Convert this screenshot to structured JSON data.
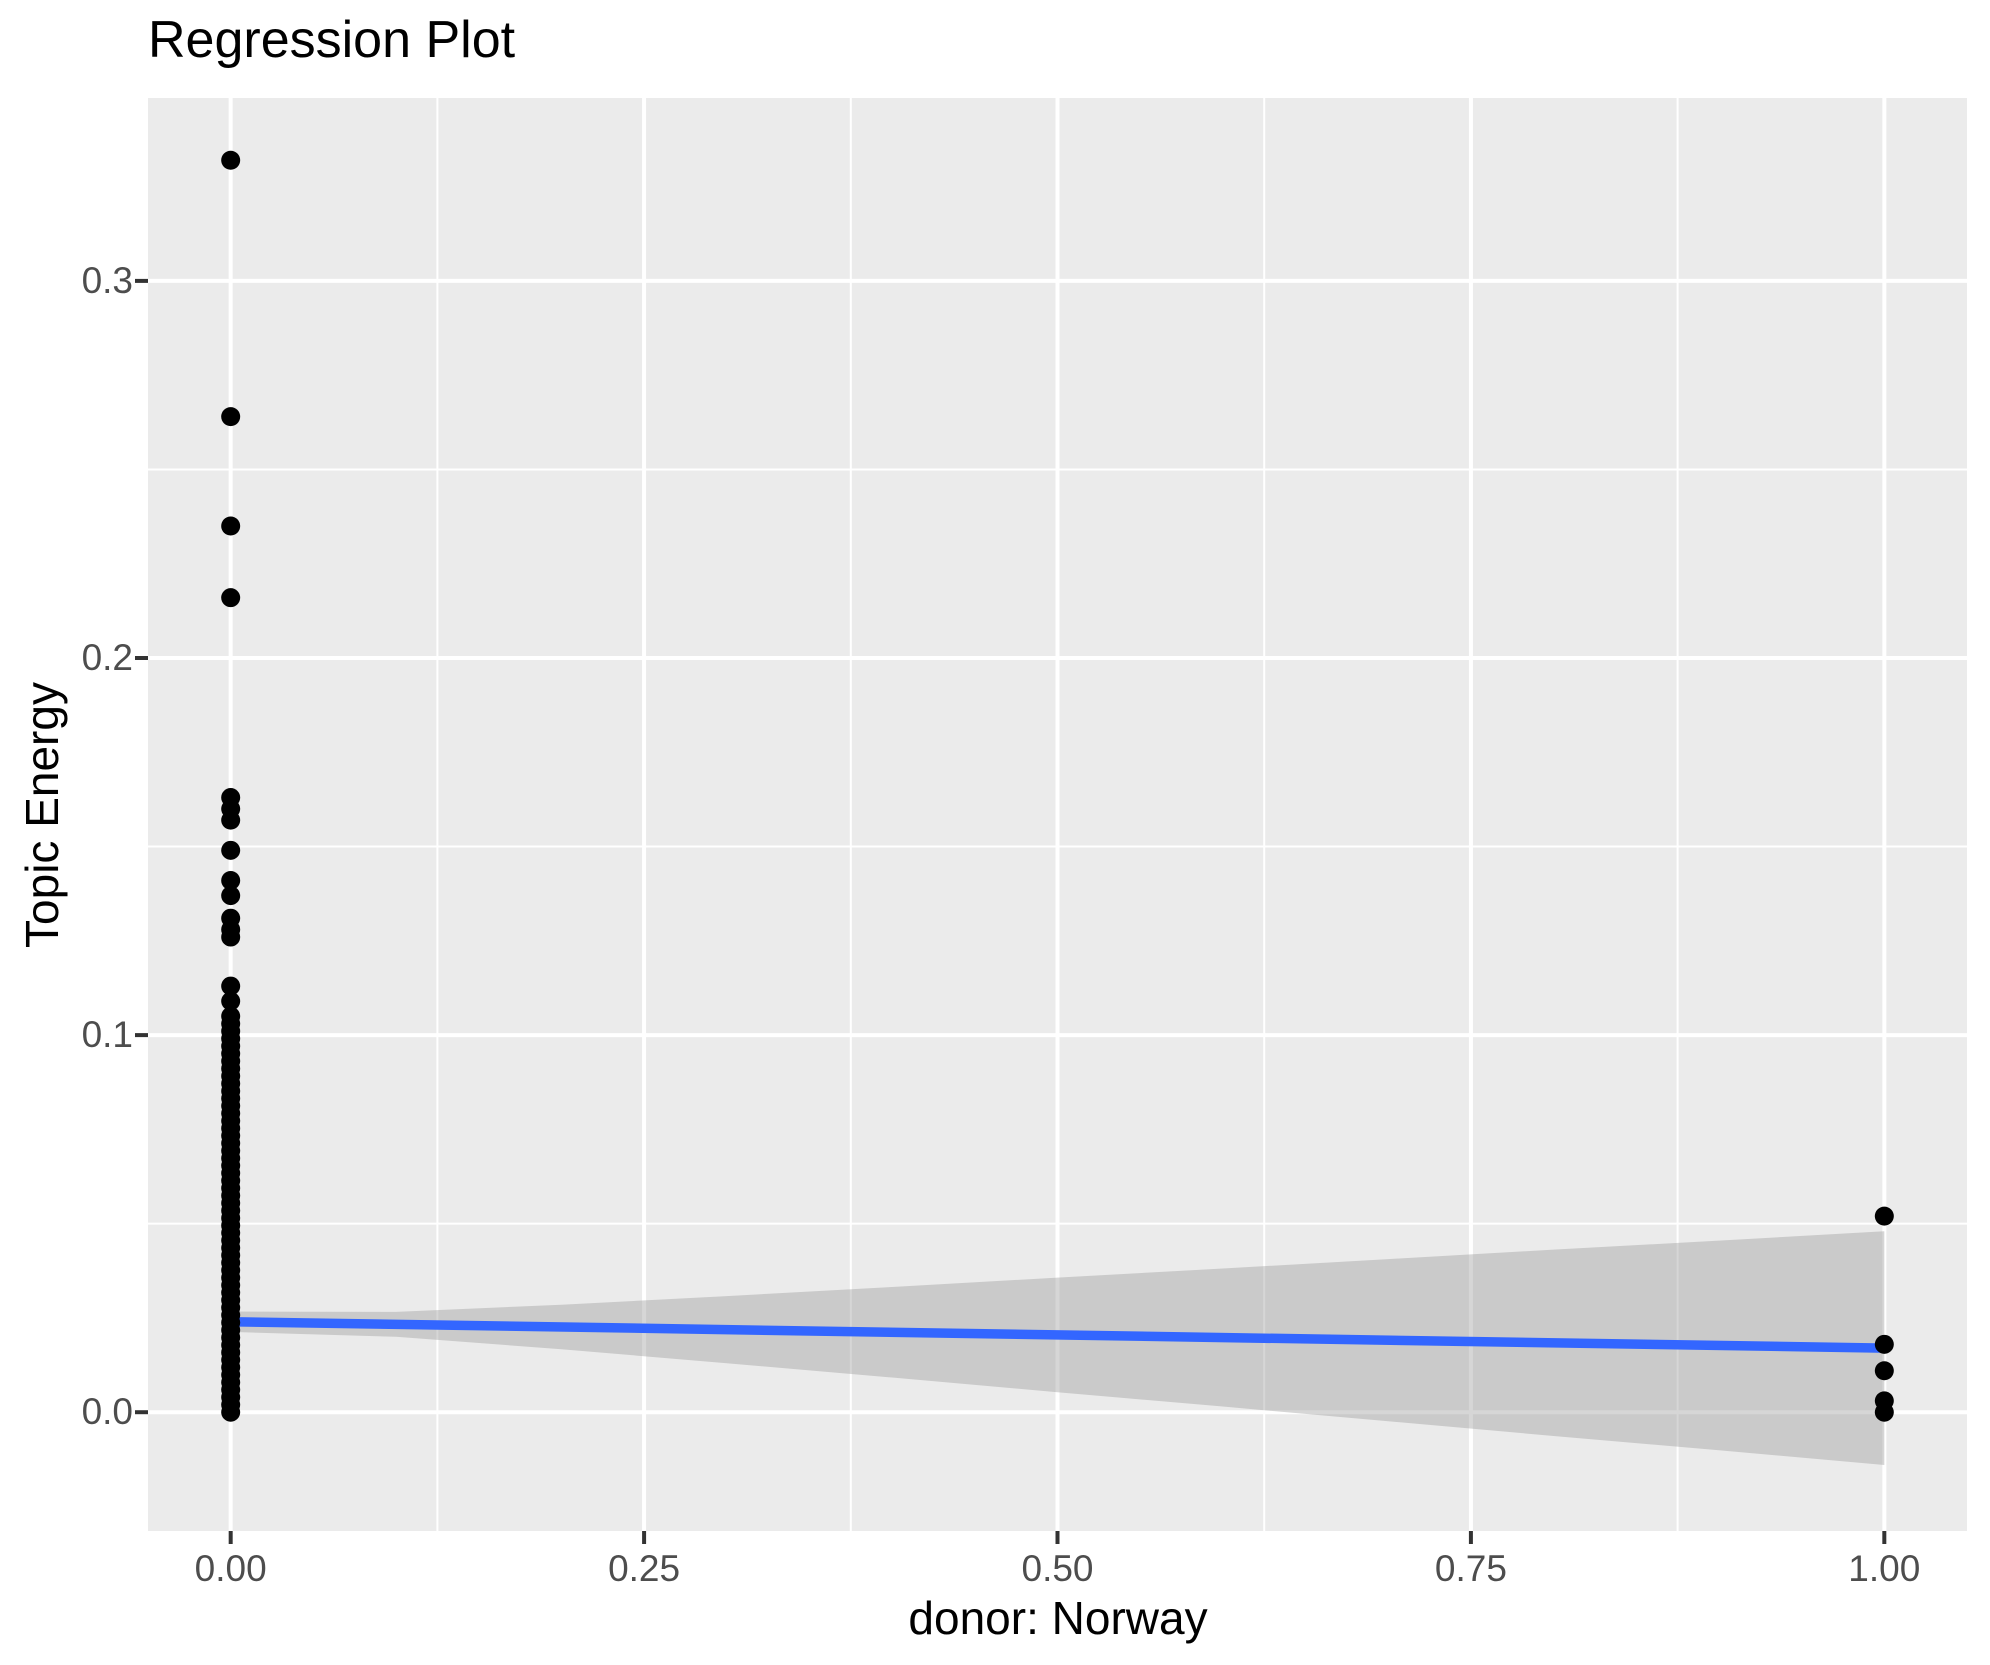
{
  "figure": {
    "title": "Regression Plot"
  },
  "chart_data": {
    "type": "scatter",
    "title": "Regression Plot",
    "xlabel": "donor: Norway",
    "ylabel": "Topic Energy",
    "xlim": [
      -0.05,
      1.05
    ],
    "ylim": [
      -0.0315,
      0.3485
    ],
    "grid": true,
    "legend": "none",
    "x_ticks": {
      "values": [
        0.0,
        0.25,
        0.5,
        0.75,
        1.0
      ],
      "labels": [
        "0.00",
        "0.25",
        "0.50",
        "0.75",
        "1.00"
      ]
    },
    "y_ticks": {
      "values": [
        0.0,
        0.1,
        0.2,
        0.3
      ],
      "labels": [
        "0.0",
        "0.1",
        "0.2",
        "0.3"
      ]
    },
    "x_minor_gridlines": [
      0.125,
      0.375,
      0.625,
      0.875
    ],
    "y_minor_gridlines": [
      0.05,
      0.15,
      0.25
    ],
    "series": [
      {
        "name": "observations at x=0 (distinct upper points)",
        "marker": "point",
        "x": 0,
        "values": [
          0.332,
          0.264,
          0.235,
          0.216,
          0.163,
          0.16,
          0.157,
          0.149,
          0.141,
          0.137,
          0.131,
          0.128,
          0.126,
          0.113,
          0.109
        ]
      },
      {
        "name": "observations at x=0 (dense overplotted strip)",
        "marker": "point",
        "x": 0,
        "strip_range": {
          "min": 0.0,
          "max": 0.105,
          "count": 54
        }
      },
      {
        "name": "observations at x=1",
        "marker": "point",
        "x": 1,
        "values": [
          0.052,
          0.018,
          0.011,
          0.003,
          0.0
        ]
      },
      {
        "name": "regression line",
        "marker": "line",
        "x": [
          0,
          1
        ],
        "y": [
          0.024,
          0.017
        ]
      },
      {
        "name": "confidence band",
        "marker": "ribbon",
        "x": [
          0.0,
          0.1,
          0.2,
          0.3,
          0.4,
          0.5,
          0.6,
          0.7,
          0.8,
          0.9,
          1.0
        ],
        "upper": [
          0.0267,
          0.0266,
          0.0285,
          0.0308,
          0.0332,
          0.0357,
          0.0381,
          0.0406,
          0.0431,
          0.0455,
          0.048
        ],
        "lower": [
          0.0213,
          0.02,
          0.0167,
          0.013,
          0.0092,
          0.0053,
          0.0015,
          -0.0024,
          -0.0063,
          -0.0101,
          -0.014
        ]
      }
    ],
    "colors": {
      "panel_background": "#EBEBEB",
      "gridline": "#FFFFFF",
      "point": "#000000",
      "regression_line": "#3366FF",
      "confidence_band": "#999999",
      "confidence_band_opacity": 0.4,
      "tick_label": "#4D4D4D",
      "tick_mark": "#333333",
      "title": "#000000"
    }
  }
}
